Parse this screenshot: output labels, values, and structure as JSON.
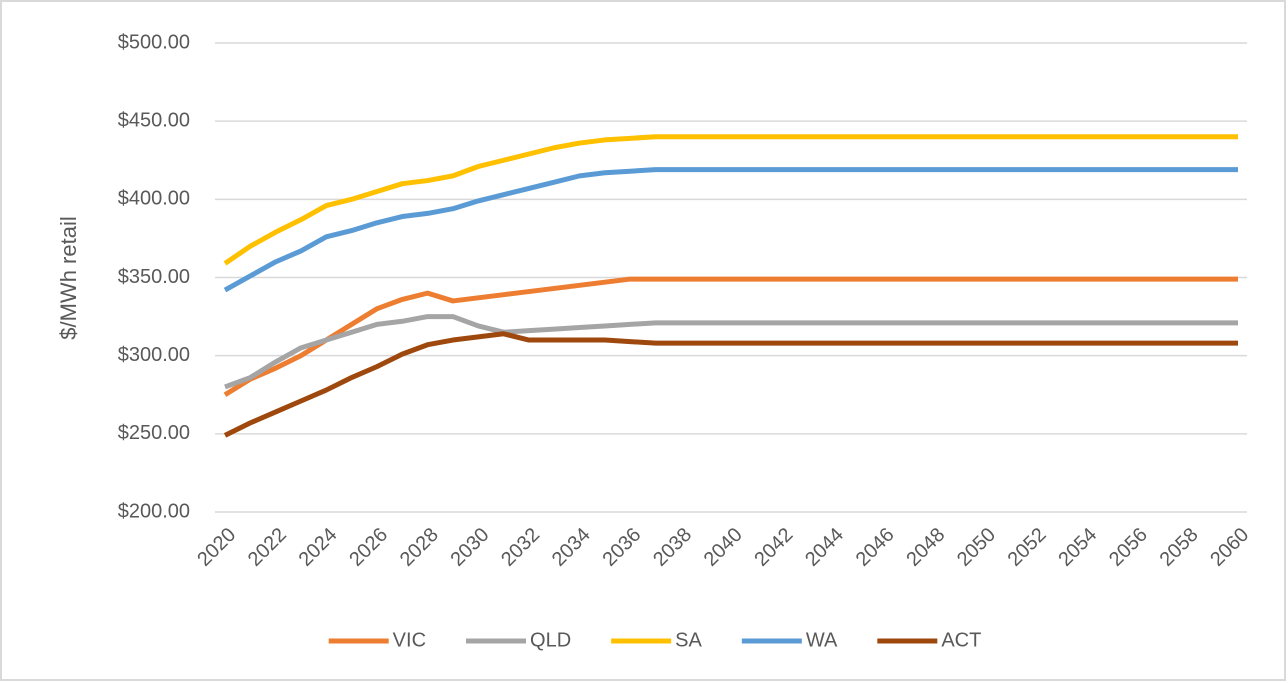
{
  "chart_data": {
    "type": "line",
    "y_label": "$/MWh retail",
    "x": [
      2020,
      2021,
      2022,
      2023,
      2024,
      2025,
      2026,
      2027,
      2028,
      2029,
      2030,
      2031,
      2032,
      2033,
      2034,
      2035,
      2036,
      2037,
      2038,
      2039,
      2040,
      2041,
      2042,
      2043,
      2044,
      2045,
      2046,
      2047,
      2048,
      2049,
      2050,
      2051,
      2052,
      2053,
      2054,
      2055,
      2056,
      2057,
      2058,
      2059,
      2060
    ],
    "xlim": [
      2020,
      2060
    ],
    "xticks": [
      2020,
      2022,
      2024,
      2026,
      2028,
      2030,
      2032,
      2034,
      2036,
      2038,
      2040,
      2042,
      2044,
      2046,
      2048,
      2050,
      2052,
      2054,
      2056,
      2058,
      2060
    ],
    "ylim": [
      200,
      500
    ],
    "yticks": [
      {
        "value": 200,
        "label": "$200.00"
      },
      {
        "value": 250,
        "label": "$250.00"
      },
      {
        "value": 300,
        "label": "$300.00"
      },
      {
        "value": 350,
        "label": "$350.00"
      },
      {
        "value": 400,
        "label": "$400.00"
      },
      {
        "value": 450,
        "label": "$450.00"
      },
      {
        "value": 500,
        "label": "$500.00"
      }
    ],
    "grid": true,
    "legend": "bottom",
    "series": [
      {
        "name": "VIC",
        "color": "#ed7d31",
        "values": [
          275,
          285,
          292,
          300,
          310,
          320,
          330,
          336,
          340,
          335,
          337,
          339,
          341,
          343,
          345,
          347,
          349,
          349,
          349,
          349,
          349,
          349,
          349,
          349,
          349,
          349,
          349,
          349,
          349,
          349,
          349,
          349,
          349,
          349,
          349,
          349,
          349,
          349,
          349,
          349,
          349
        ]
      },
      {
        "name": "QLD",
        "color": "#a5a5a5",
        "values": [
          280,
          286,
          296,
          305,
          310,
          315,
          320,
          322,
          325,
          325,
          319,
          315,
          316,
          317,
          318,
          319,
          320,
          321,
          321,
          321,
          321,
          321,
          321,
          321,
          321,
          321,
          321,
          321,
          321,
          321,
          321,
          321,
          321,
          321,
          321,
          321,
          321,
          321,
          321,
          321,
          321
        ]
      },
      {
        "name": "SA",
        "color": "#ffc000",
        "values": [
          359,
          370,
          379,
          387,
          396,
          400,
          405,
          410,
          412,
          415,
          421,
          425,
          429,
          433,
          436,
          438,
          439,
          440,
          440,
          440,
          440,
          440,
          440,
          440,
          440,
          440,
          440,
          440,
          440,
          440,
          440,
          440,
          440,
          440,
          440,
          440,
          440,
          440,
          440,
          440,
          440
        ]
      },
      {
        "name": "WA",
        "color": "#5b9bd5",
        "values": [
          342,
          351,
          360,
          367,
          376,
          380,
          385,
          389,
          391,
          394,
          399,
          403,
          407,
          411,
          415,
          417,
          418,
          419,
          419,
          419,
          419,
          419,
          419,
          419,
          419,
          419,
          419,
          419,
          419,
          419,
          419,
          419,
          419,
          419,
          419,
          419,
          419,
          419,
          419,
          419,
          419
        ]
      },
      {
        "name": "ACT",
        "color": "#9e480e",
        "values": [
          249,
          257,
          264,
          271,
          278,
          286,
          293,
          301,
          307,
          310,
          312,
          314,
          310,
          310,
          310,
          310,
          309,
          308,
          308,
          308,
          308,
          308,
          308,
          308,
          308,
          308,
          308,
          308,
          308,
          308,
          308,
          308,
          308,
          308,
          308,
          308,
          308,
          308,
          308,
          308,
          308
        ]
      }
    ]
  }
}
